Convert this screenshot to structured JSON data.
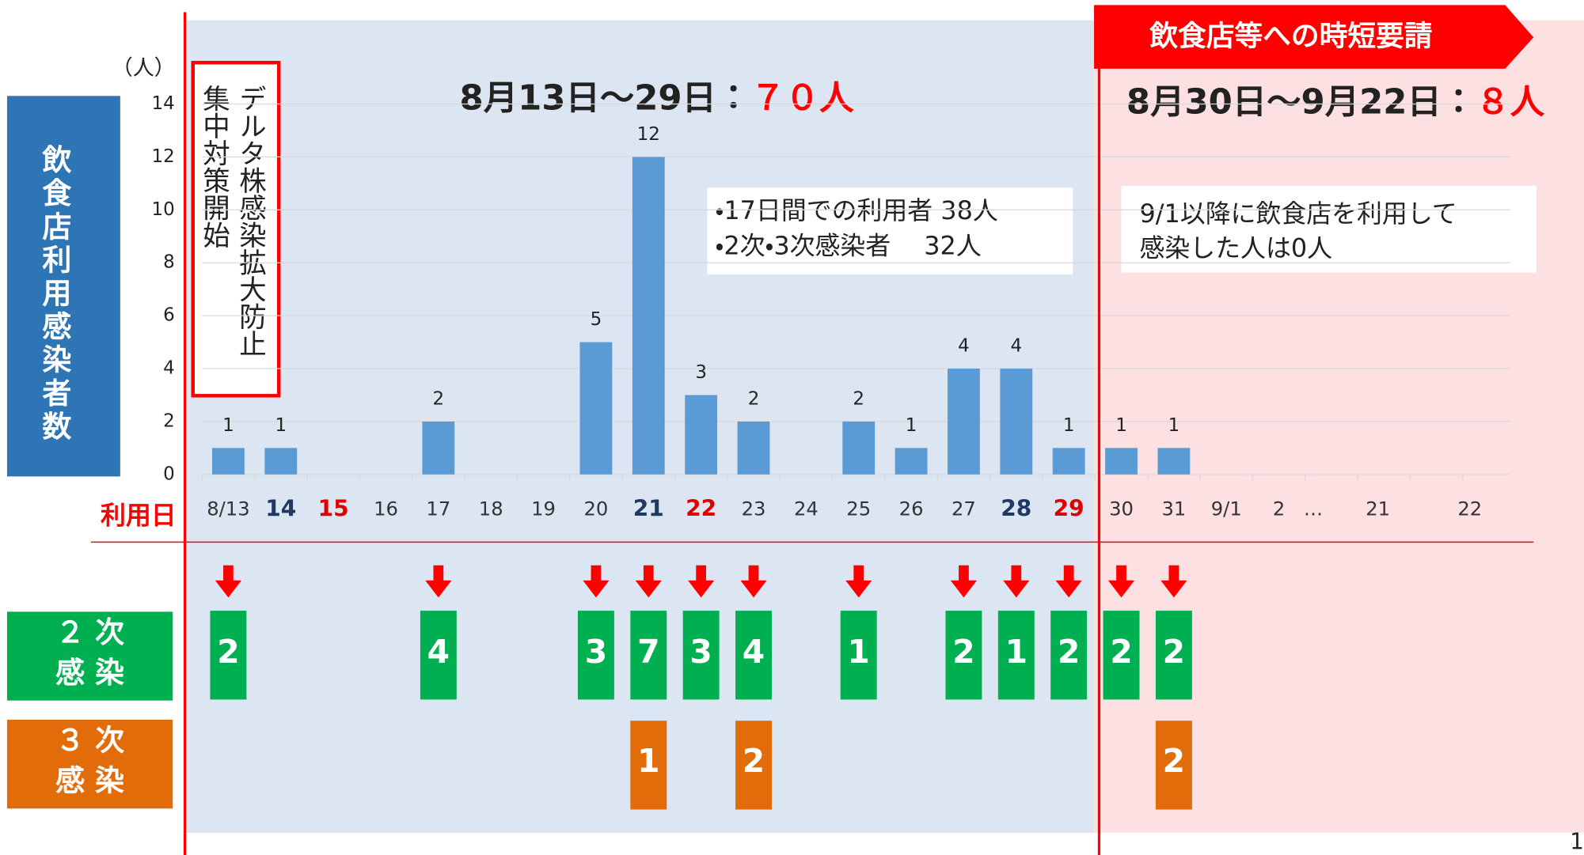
{
  "chart_data": {
    "type": "bar",
    "y_axis_title": "飲食店利用感染者数",
    "y_unit": "（人）",
    "x_axis_title": "利用日",
    "categories": [
      "8/13",
      "14",
      "15",
      "16",
      "17",
      "18",
      "19",
      "20",
      "21",
      "22",
      "23",
      "24",
      "25",
      "26",
      "27",
      "28",
      "29",
      "30",
      "31",
      "9/1",
      "2",
      "…",
      "21",
      "22"
    ],
    "tick_color": "#333333",
    "category_colors": [
      "#333333",
      "#203864",
      "#e00000",
      "#333333",
      "#333333",
      "#333333",
      "#333333",
      "#333333",
      "#203864",
      "#e00000",
      "#333333",
      "#333333",
      "#333333",
      "#333333",
      "#333333",
      "#203864",
      "#e00000",
      "#333333",
      "#333333",
      "#333333",
      "#333333",
      "#333333",
      "#333333",
      "#333333"
    ],
    "values": [
      1,
      1,
      null,
      null,
      2,
      null,
      null,
      5,
      12,
      3,
      2,
      null,
      2,
      1,
      4,
      4,
      1,
      1,
      1,
      null,
      null,
      null,
      null,
      null
    ],
    "color": "#5b9bd5",
    "ylim": [
      0,
      14
    ],
    "yticks": [
      0,
      2,
      4,
      6,
      8,
      10,
      12,
      14
    ],
    "grid": true,
    "periods": [
      {
        "label": "8月13日～29日：",
        "total": "７０人",
        "color": "#dce6f2"
      },
      {
        "label": "8月30日～9月22日：",
        "total": "８人",
        "color": "#fde0e2"
      }
    ],
    "annotation": [
      "デルタ株感染拡大防止",
      "集中対策開始"
    ],
    "notes": [
      [
        "・17日間での利用者 38人",
        "・2次・3次感染者　 32人"
      ],
      [
        "9/1以降に飲食店を利用して",
        "感染した人は0人"
      ]
    ],
    "banner": "飲食店等への時短要請",
    "secondary": {
      "label": [
        "２ 次",
        "感 染"
      ],
      "color": "#00b050",
      "values": [
        2,
        null,
        null,
        null,
        4,
        null,
        null,
        3,
        7,
        3,
        4,
        null,
        1,
        null,
        2,
        1,
        2,
        2,
        2,
        null,
        null,
        null,
        null,
        null
      ]
    },
    "tertiary": {
      "label": [
        "３ 次",
        "感 染"
      ],
      "color": "#e36c0a",
      "values": [
        null,
        null,
        null,
        null,
        null,
        null,
        null,
        null,
        1,
        null,
        2,
        null,
        null,
        null,
        null,
        null,
        null,
        null,
        2,
        null,
        null,
        null,
        null,
        null
      ]
    }
  },
  "page_number": "1"
}
